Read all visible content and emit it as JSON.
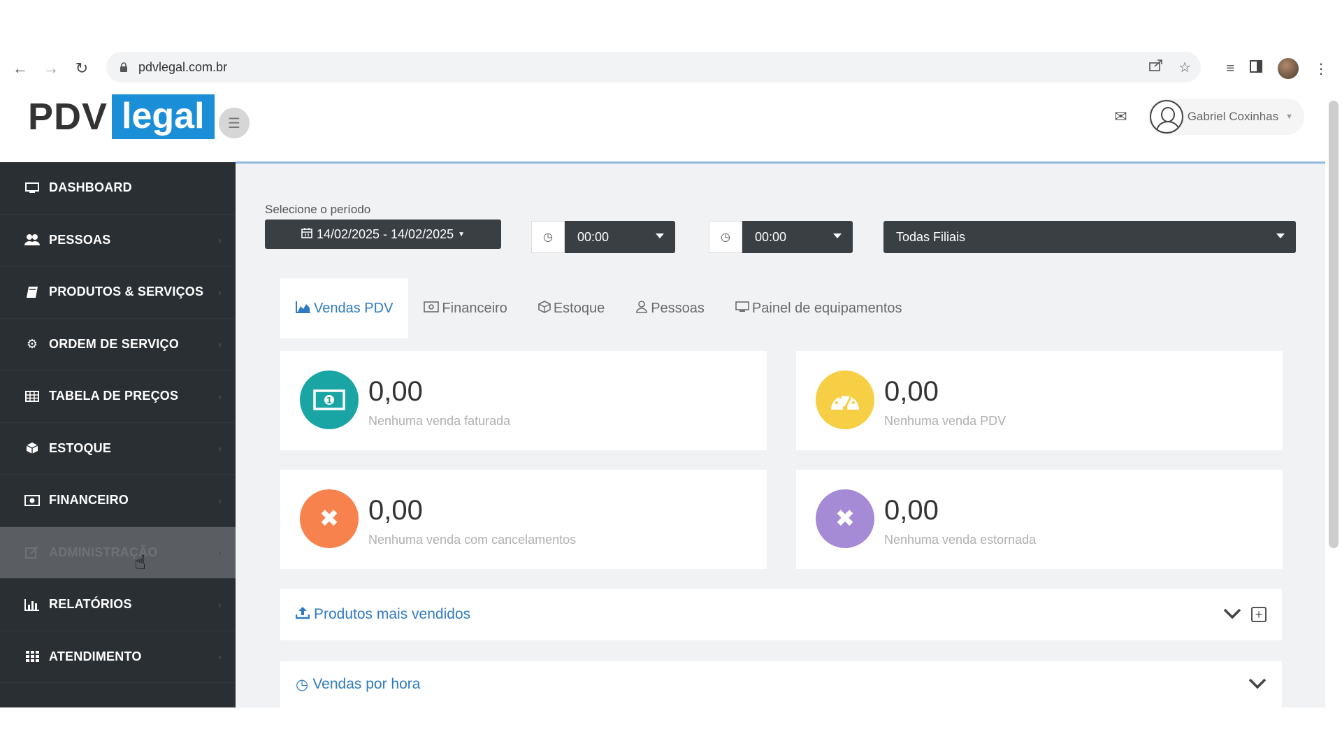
{
  "browser": {
    "url": "pdvlegal.com.br"
  },
  "header": {
    "logo_left": "PDV",
    "logo_right": "legal",
    "user_name": "Gabriel Coxinhas"
  },
  "sidebar": {
    "items": [
      {
        "label": "DASHBOARD",
        "icon": "monitor-icon"
      },
      {
        "label": "PESSOAS",
        "icon": "users-icon"
      },
      {
        "label": "PRODUTOS & SERVIÇOS",
        "icon": "book-icon"
      },
      {
        "label": "ORDEM DE SERVIÇO",
        "icon": "gear-icon"
      },
      {
        "label": "TABELA DE PREÇOS",
        "icon": "table-icon"
      },
      {
        "label": "ESTOQUE",
        "icon": "box-icon"
      },
      {
        "label": "FINANCEIRO",
        "icon": "money-icon"
      },
      {
        "label": "ADMINISTRAÇÃO",
        "icon": "edit-icon"
      },
      {
        "label": "RELATÓRIOS",
        "icon": "bar-chart-icon"
      },
      {
        "label": "ATENDIMENTO",
        "icon": "grid-icon"
      }
    ]
  },
  "filters": {
    "period_label": "Selecione o período",
    "date_range": "14/02/2025 - 14/02/2025",
    "time_start": "00:00",
    "time_end": "00:00",
    "branch": "Todas Filiais"
  },
  "tabs": [
    {
      "label": "Vendas PDV"
    },
    {
      "label": "Financeiro"
    },
    {
      "label": "Estoque"
    },
    {
      "label": "Pessoas"
    },
    {
      "label": "Painel de equipamentos"
    }
  ],
  "cards": [
    {
      "value": "0,00",
      "label": "Nenhuma venda faturada",
      "color": "#1aa5a5"
    },
    {
      "value": "0,00",
      "label": "Nenhuma venda PDV",
      "color": "#f6cf45"
    },
    {
      "value": "0,00",
      "label": "Nenhuma venda com cancelamentos",
      "color": "#f7824d"
    },
    {
      "value": "0,00",
      "label": "Nenhuma venda estornada",
      "color": "#a58ad6"
    }
  ],
  "panels": {
    "top_products": "Produtos mais vendidos",
    "sales_by_hour": "Vendas por hora"
  }
}
